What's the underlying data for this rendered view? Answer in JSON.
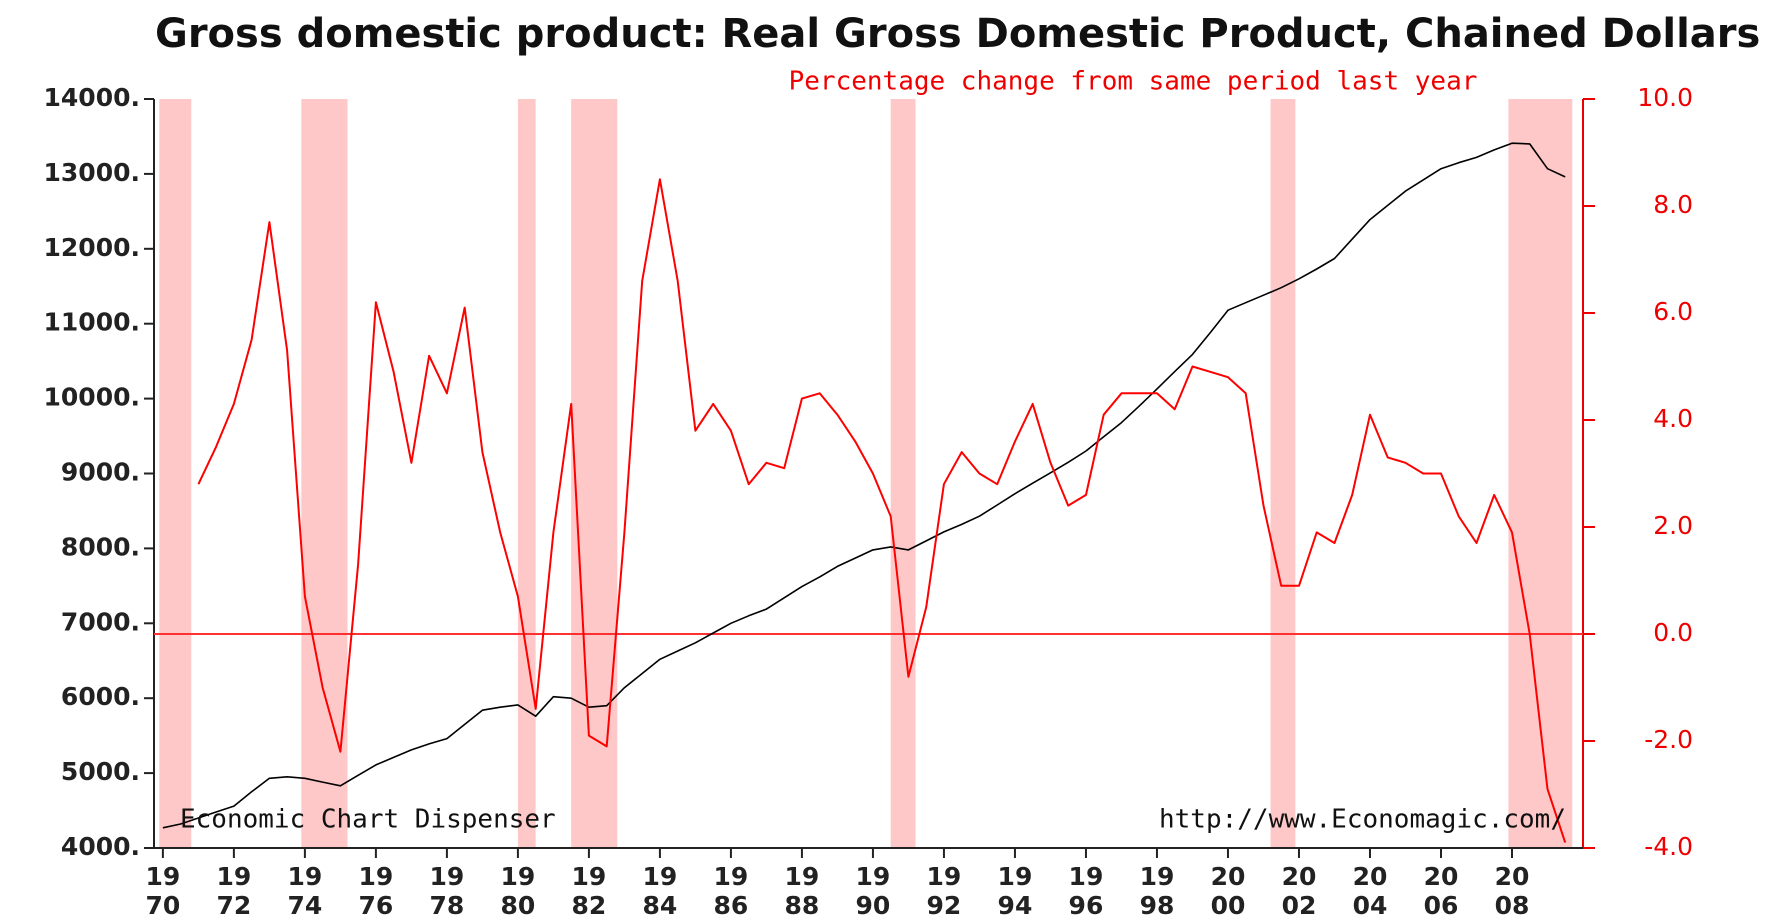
{
  "chart_data": {
    "type": "line",
    "title": "Gross domestic product: Real Gross Domestic Product, Chained Dollars",
    "subtitle": "Percentage change from same period last year",
    "annotations": [
      "Economic Chart Dispenser",
      "http://www.Economagic.com/"
    ],
    "x": [
      1970,
      1970.5,
      1971,
      1971.5,
      1972,
      1972.5,
      1973,
      1973.5,
      1974,
      1974.5,
      1975,
      1975.5,
      1976,
      1976.5,
      1977,
      1977.5,
      1978,
      1978.5,
      1979,
      1979.5,
      1980,
      1980.5,
      1981,
      1981.5,
      1982,
      1982.5,
      1983,
      1983.5,
      1984,
      1984.5,
      1985,
      1985.5,
      1986,
      1986.5,
      1987,
      1987.5,
      1988,
      1988.5,
      1989,
      1989.5,
      1990,
      1990.5,
      1991,
      1991.5,
      1992,
      1992.5,
      1993,
      1993.5,
      1994,
      1994.5,
      1995,
      1995.5,
      1996,
      1996.5,
      1997,
      1997.5,
      1998,
      1998.5,
      1999,
      1999.5,
      2000,
      2000.5,
      2001,
      2001.5,
      2002,
      2002.5,
      2003,
      2003.5,
      2004,
      2004.5,
      2005,
      2005.5,
      2006,
      2006.5,
      2007,
      2007.5,
      2008,
      2008.5,
      2009,
      2009.5
    ],
    "series": [
      {
        "name": "Real Gross Domestic Product",
        "color": "#000000",
        "axis": "y",
        "values": [
          4270,
          4320,
          4400,
          4480,
          4560,
          4750,
          4930,
          4950,
          4930,
          4880,
          4830,
          4970,
          5110,
          5210,
          5310,
          5390,
          5460,
          5650,
          5840,
          5880,
          5910,
          5760,
          6020,
          6000,
          5880,
          5900,
          6140,
          6330,
          6520,
          6630,
          6740,
          6870,
          7000,
          7100,
          7190,
          7340,
          7490,
          7620,
          7760,
          7870,
          7980,
          8020,
          7980,
          8100,
          8220,
          8320,
          8430,
          8580,
          8730,
          8870,
          9010,
          9150,
          9300,
          9490,
          9680,
          9900,
          10130,
          10360,
          10590,
          10880,
          11180,
          11280,
          11380,
          11480,
          11600,
          11730,
          11870,
          12130,
          12390,
          12580,
          12770,
          12920,
          13070,
          13150,
          13220,
          13320,
          13410,
          13400,
          13070,
          12960
        ]
      },
      {
        "name": "Percentage change from same period last year",
        "color": "#ff0000",
        "axis": "y2",
        "values": [
          null,
          null,
          2.8,
          3.5,
          4.3,
          5.5,
          7.7,
          5.3,
          0.7,
          -1.0,
          -2.2,
          1.3,
          6.2,
          4.9,
          3.2,
          5.2,
          4.5,
          6.1,
          3.4,
          1.9,
          0.7,
          -1.4,
          1.9,
          4.3,
          -1.9,
          -2.1,
          1.9,
          6.6,
          8.5,
          6.6,
          3.8,
          4.3,
          3.8,
          2.8,
          3.2,
          3.1,
          4.4,
          4.5,
          4.1,
          3.6,
          3.0,
          2.2,
          -0.8,
          0.5,
          2.8,
          3.4,
          3.0,
          2.8,
          3.6,
          4.3,
          3.2,
          2.4,
          2.6,
          4.1,
          4.5,
          4.5,
          4.5,
          4.2,
          5.0,
          4.9,
          4.8,
          4.5,
          2.4,
          0.9,
          0.9,
          1.9,
          1.7,
          2.6,
          4.1,
          3.3,
          3.2,
          3.0,
          3.0,
          2.2,
          1.7,
          2.6,
          1.9,
          0.0,
          -2.9,
          -3.9
        ]
      }
    ],
    "shaded_regions": [
      [
        1969.9,
        1970.8
      ],
      [
        1973.9,
        1975.2
      ],
      [
        1980.0,
        1980.5
      ],
      [
        1981.5,
        1982.8
      ],
      [
        1990.5,
        1991.2
      ],
      [
        2001.2,
        2001.9
      ],
      [
        2007.9,
        2009.7
      ]
    ],
    "shade_color": "#ffc8c8",
    "xlim": [
      1969.75,
      2010.0
    ],
    "xticks": [
      {
        "value": 1970,
        "label": "19 70"
      },
      {
        "value": 1972,
        "label": "19 72"
      },
      {
        "value": 1974,
        "label": "19 74"
      },
      {
        "value": 1976,
        "label": "19 76"
      },
      {
        "value": 1978,
        "label": "19 78"
      },
      {
        "value": 1980,
        "label": "19 80"
      },
      {
        "value": 1982,
        "label": "19 82"
      },
      {
        "value": 1984,
        "label": "19 84"
      },
      {
        "value": 1986,
        "label": "19 86"
      },
      {
        "value": 1988,
        "label": "19 88"
      },
      {
        "value": 1990,
        "label": "19 90"
      },
      {
        "value": 1992,
        "label": "19 92"
      },
      {
        "value": 1994,
        "label": "19 94"
      },
      {
        "value": 1996,
        "label": "19 96"
      },
      {
        "value": 1998,
        "label": "19 98"
      },
      {
        "value": 2000,
        "label": "20 00"
      },
      {
        "value": 2002,
        "label": "20 02"
      },
      {
        "value": 2004,
        "label": "20 04"
      },
      {
        "value": 2006,
        "label": "20 06"
      },
      {
        "value": 2008,
        "label": "20 08"
      }
    ],
    "ylim": [
      4000,
      14000
    ],
    "yticks": [
      {
        "value": 4000,
        "label": "4000."
      },
      {
        "value": 5000,
        "label": "5000."
      },
      {
        "value": 6000,
        "label": "6000."
      },
      {
        "value": 7000,
        "label": "7000."
      },
      {
        "value": 8000,
        "label": "8000."
      },
      {
        "value": 9000,
        "label": "9000."
      },
      {
        "value": 10000,
        "label": "10000."
      },
      {
        "value": 11000,
        "label": "11000."
      },
      {
        "value": 12000,
        "label": "12000."
      },
      {
        "value": 13000,
        "label": "13000."
      },
      {
        "value": 14000,
        "label": "14000."
      }
    ],
    "y2lim": [
      -4,
      10
    ],
    "y2ticks": [
      {
        "value": -4,
        "label": "-4.0"
      },
      {
        "value": -2,
        "label": "-2.0"
      },
      {
        "value": 0,
        "label": "0.0"
      },
      {
        "value": 2,
        "label": "2.0"
      },
      {
        "value": 4,
        "label": "4.0"
      },
      {
        "value": 6,
        "label": "6.0"
      },
      {
        "value": 8,
        "label": "8.0"
      },
      {
        "value": 10,
        "label": "10.0"
      }
    ],
    "y2_reference_line": 0
  }
}
